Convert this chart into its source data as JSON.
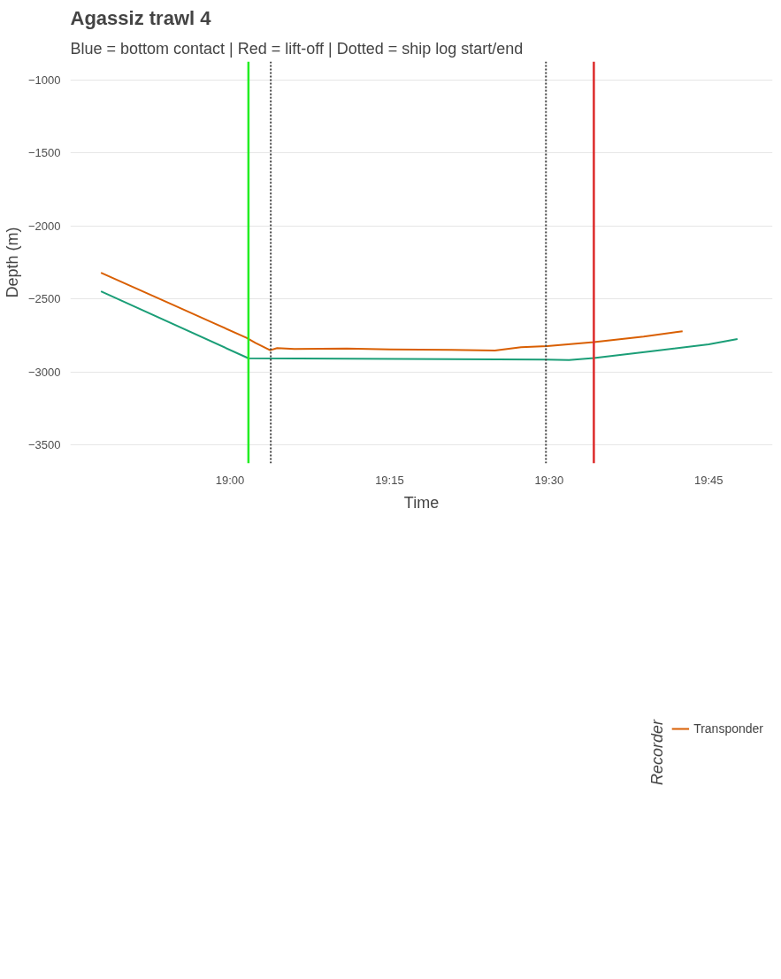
{
  "chart_data": {
    "type": "line",
    "title": "Agassiz trawl 4",
    "subtitle": "Blue = bottom contact | Red = lift-off | Dotted = ship log start/end",
    "xlabel": "Time",
    "ylabel": "Depth (m)",
    "legend_title": "Recorder",
    "series": [
      {
        "name": null,
        "color": "#1b9e77",
        "x": [
          18.798,
          19.029,
          19.495,
          19.531,
          19.57,
          19.661,
          19.75,
          19.795
        ],
        "values": [
          -2447,
          -2905,
          -2915,
          -2918,
          -2903,
          -2857,
          -2810,
          -2773
        ]
      },
      {
        "name": "Transponder",
        "color": "#d95f02",
        "x": [
          18.798,
          18.91,
          18.978,
          19.026,
          19.04,
          19.063,
          19.074,
          19.101,
          19.183,
          19.251,
          19.347,
          19.415,
          19.456,
          19.497,
          19.57,
          19.648,
          19.709
        ],
        "values": [
          -2319,
          -2538,
          -2671,
          -2765,
          -2800,
          -2850,
          -2835,
          -2842,
          -2838,
          -2845,
          -2848,
          -2852,
          -2830,
          -2822,
          -2795,
          -2757,
          -2720
        ]
      }
    ],
    "xlim": [
      18.75,
      19.85
    ],
    "xticks": [
      {
        "value": 19.0,
        "label": "19:00"
      },
      {
        "value": 19.25,
        "label": "19:15"
      },
      {
        "value": 19.5,
        "label": "19:30"
      },
      {
        "value": 19.75,
        "label": "19:45"
      }
    ],
    "ylim": [
      -3625,
      -873
    ],
    "yticks": [
      {
        "value": -3500,
        "label": "−3500"
      },
      {
        "value": -3000,
        "label": "−3000"
      },
      {
        "value": -2500,
        "label": "−2500"
      },
      {
        "value": -2000,
        "label": "−2000"
      },
      {
        "value": -1500,
        "label": "−1500"
      },
      {
        "value": -1000,
        "label": "−1000"
      }
    ],
    "ref_lines": [
      {
        "axis": "x",
        "value": 19.029,
        "color": "#22ee22",
        "line_style": "solid"
      },
      {
        "axis": "x",
        "value": 19.064,
        "color": "#444444",
        "line_style": "dotted"
      },
      {
        "axis": "x",
        "value": 19.495,
        "color": "#444444",
        "line_style": "dotted"
      },
      {
        "axis": "x",
        "value": 19.57,
        "color": "#dd2b2b",
        "line_style": "solid"
      }
    ],
    "grid": "y",
    "legend": "bottom",
    "line_style": "solid",
    "marker": "none"
  }
}
